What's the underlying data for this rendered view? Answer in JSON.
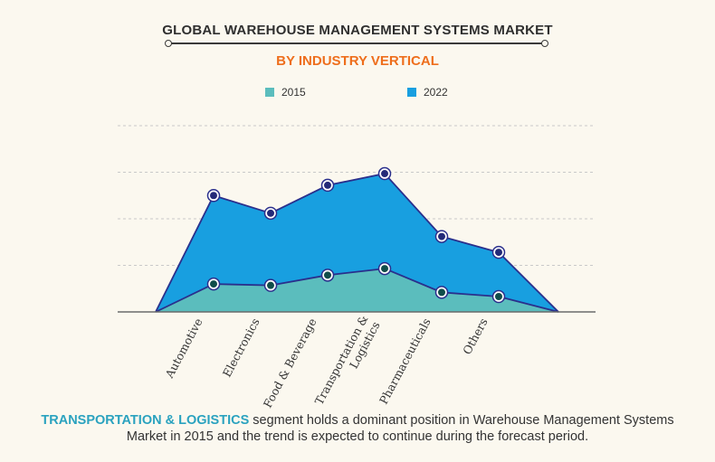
{
  "header": {
    "title": "GLOBAL WAREHOUSE MANAGEMENT SYSTEMS MARKET",
    "subtitle": "BY INDUSTRY VERTICAL"
  },
  "legend": [
    {
      "label": "2015",
      "color": "#5bbdbd"
    },
    {
      "label": "2022",
      "color": "#189fe0"
    }
  ],
  "footer": {
    "highlight": "TRANSPORTATION & LOGISTICS",
    "text": " segment holds a dominant position in Warehouse Management Systems  Market in 2015 and the trend is expected to continue during the forecast period."
  },
  "chart_data": {
    "type": "area",
    "categories": [
      "Automotive",
      "Electronics",
      "Food & Beverage",
      "Transportation & Logistics",
      "Pharmaceuticals",
      "Others"
    ],
    "series": [
      {
        "name": "2015",
        "values": [
          0.6,
          0.57,
          0.79,
          0.93,
          0.42,
          0.33
        ],
        "color": "#5bbdbd"
      },
      {
        "name": "2022",
        "values": [
          2.5,
          2.12,
          2.72,
          2.97,
          1.62,
          1.28
        ],
        "color": "#189fe0"
      }
    ],
    "ylim": [
      0,
      4
    ],
    "grid": true,
    "legend_position": "top-center",
    "colors": {
      "line": "#2a2f8c",
      "axis": "#6b6b6b",
      "grid": "#c9c9c9"
    }
  }
}
